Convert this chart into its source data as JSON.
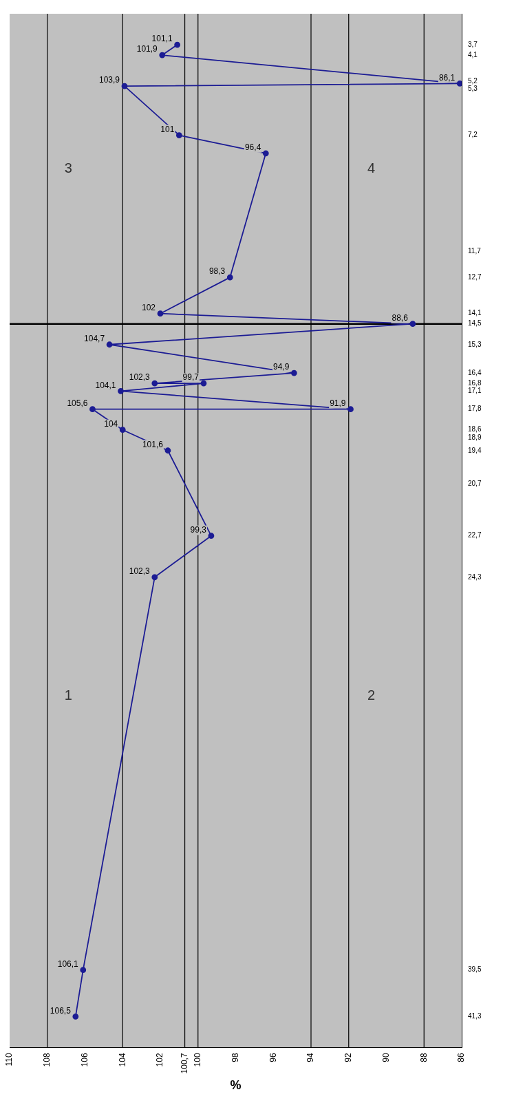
{
  "chart_data": {
    "type": "line",
    "orientation": "horizontal",
    "xlabel": "%",
    "x": [
      41.3,
      39.5,
      24.3,
      22.7,
      19.4,
      18.6,
      17.8,
      17.8,
      17.1,
      16.8,
      16.8,
      16.4,
      15.3,
      14.5,
      14.1,
      12.7,
      7.9,
      7.2,
      5.3,
      5.2,
      4.1,
      3.7
    ],
    "values": [
      106.5,
      106.1,
      102.3,
      99.3,
      101.6,
      104,
      105.6,
      91.9,
      104.1,
      99.7,
      102.3,
      94.9,
      104.7,
      88.6,
      102,
      98.3,
      96.4,
      101,
      103.9,
      86.1,
      101.9,
      101.1
    ],
    "value_labels": [
      "106,5",
      "106,1",
      "102,3",
      "99,3",
      "101,6",
      "104",
      "105,6",
      "91,9",
      "104,1",
      "99,7",
      "102,3",
      "94,9",
      "104,7",
      "88,6",
      "102",
      "98,3",
      "96,4",
      "101",
      "103,9",
      "86,1",
      "101,9",
      "101,1"
    ],
    "color": "#1c1c94",
    "marker": "circle",
    "line_style": "solid",
    "grid": false,
    "legend": false,
    "ylim": [
      42.5,
      2.5
    ],
    "yticks": [
      {
        "value": 41.3,
        "label": "41,3"
      },
      {
        "value": 39.5,
        "label": "39,5"
      },
      {
        "value": 24.3,
        "label": "24,3"
      },
      {
        "value": 22.7,
        "label": "22,7"
      },
      {
        "value": 20.7,
        "label": "20,7"
      },
      {
        "value": 19.4,
        "label": "19,4"
      },
      {
        "value": 18.9,
        "label": "18,9"
      },
      {
        "value": 18.6,
        "label": "18,6"
      },
      {
        "value": 17.8,
        "label": "17,8"
      },
      {
        "value": 17.1,
        "label": "17,1"
      },
      {
        "value": 16.8,
        "label": "16,8"
      },
      {
        "value": 16.4,
        "label": "16,4"
      },
      {
        "value": 15.3,
        "label": "15,3"
      },
      {
        "value": 14.5,
        "label": "14,5"
      },
      {
        "value": 14.1,
        "label": "14,1"
      },
      {
        "value": 12.7,
        "label": "12,7"
      },
      {
        "value": 11.7,
        "label": "11,7"
      },
      {
        "value": 7.2,
        "label": "7,2"
      },
      {
        "value": 5.3,
        "label": "5,3"
      },
      {
        "value": 5.2,
        "label": "5,2"
      },
      {
        "value": 4.1,
        "label": "4,1"
      },
      {
        "value": 3.7,
        "label": "3,7"
      }
    ],
    "xlim": [
      110,
      86
    ],
    "xticks": [
      110,
      108,
      106,
      104,
      102,
      {
        "value": 100.7,
        "label": "100,7"
      },
      100,
      98,
      96,
      94,
      92,
      90,
      88,
      86
    ],
    "ref_lines": [
      {
        "axis": "x",
        "value": 108,
        "color": "#000000"
      },
      {
        "axis": "x",
        "value": 104,
        "color": "#000000"
      },
      {
        "axis": "x",
        "value": 100.7,
        "color": "#000000"
      },
      {
        "axis": "x",
        "value": 100,
        "color": "#000000"
      },
      {
        "axis": "x",
        "value": 94,
        "color": "#000000"
      },
      {
        "axis": "x",
        "value": 92,
        "color": "#000000"
      },
      {
        "axis": "x",
        "value": 88,
        "color": "#000000"
      },
      {
        "axis": "y",
        "value": 14.5,
        "color": "#000000"
      }
    ],
    "annotations": [
      "1",
      "2",
      "3",
      "4"
    ]
  }
}
